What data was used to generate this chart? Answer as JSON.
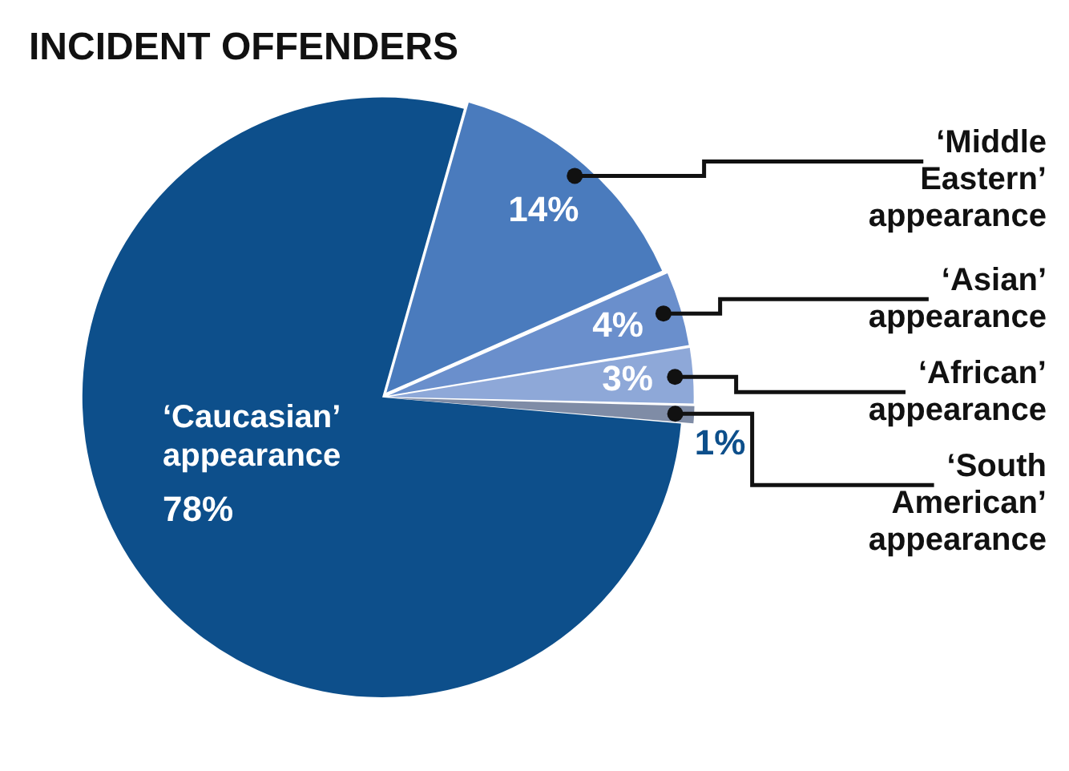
{
  "chart_data": {
    "type": "pie",
    "title": "INCIDENT OFFENDERS",
    "categories": [
      "‘Caucasian’ appearance",
      "‘Middle Eastern’ appearance",
      "‘Asian’ appearance",
      "‘African’ appearance",
      "‘South American’ appearance"
    ],
    "values": [
      78,
      14,
      4,
      3,
      1
    ],
    "value_labels": [
      "78%",
      "14%",
      "4%",
      "3%",
      "1%"
    ],
    "colors": [
      "#0d4f8b",
      "#4a7bbd",
      "#6a8fcc",
      "#8ea8d8",
      "#7f8ca6"
    ],
    "legend": false
  }
}
